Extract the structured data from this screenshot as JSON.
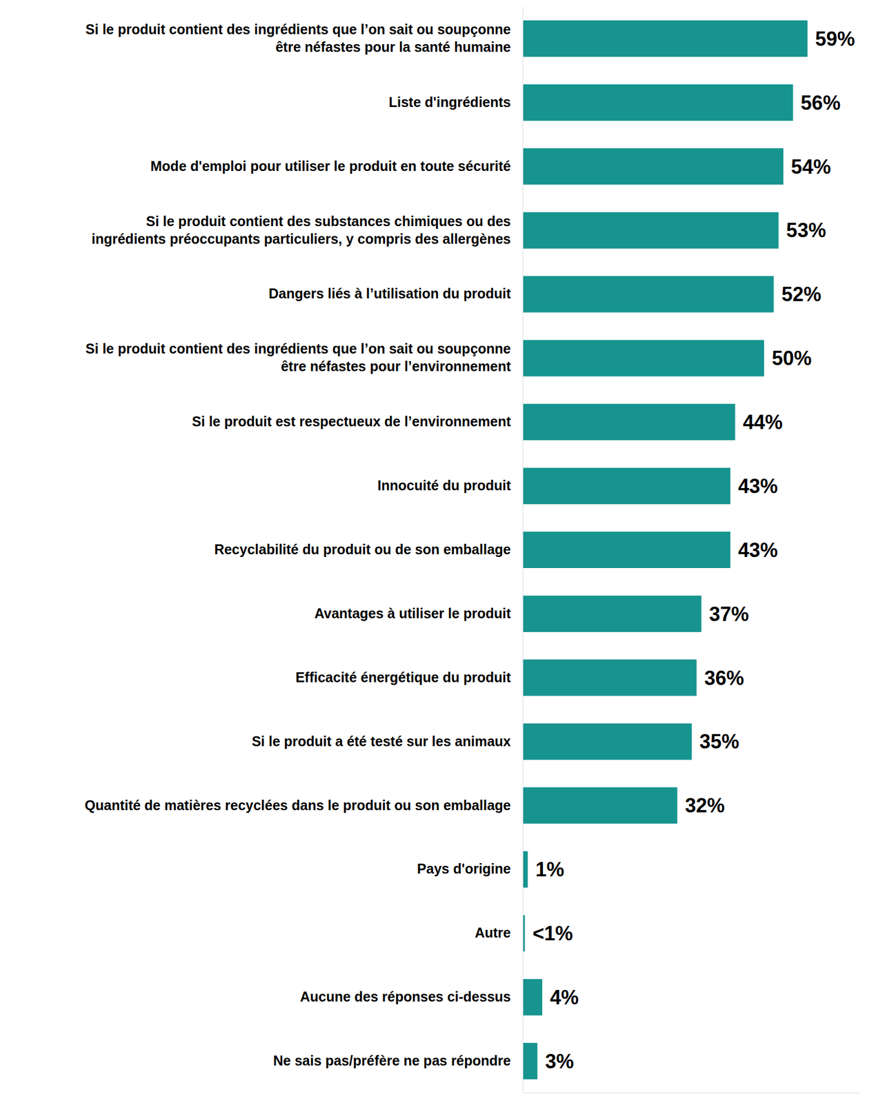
{
  "chart_data": {
    "type": "bar",
    "orientation": "horizontal",
    "categories": [
      "Si le produit contient des ingrédients que l’on sait ou soupçonne être néfastes pour la santé humaine",
      "Liste d'ingrédients",
      "Mode d'emploi pour utiliser le produit en toute sécurité",
      "Si le produit contient des substances chimiques ou des ingrédients préoccupants particuliers, y compris des allergènes",
      "Dangers liés à l’utilisation du produit",
      "Si le produit contient des ingrédients que l’on sait ou soupçonne être néfastes pour l’environnement",
      "Si le produit est respectueux de l’environnement",
      "Innocuité du produit",
      "Recyclabilité du produit ou de son emballage",
      "Avantages à utiliser le produit",
      "Efficacité énergétique du produit",
      "Si le produit a été testé sur les animaux",
      "Quantité de matières recyclées dans le produit ou son emballage",
      "Pays d'origine",
      "Autre",
      "Aucune des réponses ci-dessus",
      "Ne sais pas/préfère ne pas répondre"
    ],
    "values": [
      59,
      56,
      54,
      53,
      52,
      50,
      44,
      43,
      43,
      37,
      36,
      35,
      32,
      1,
      0.4,
      4,
      3
    ],
    "value_labels": [
      "59%",
      "56%",
      "54%",
      "53%",
      "52%",
      "50%",
      "44%",
      "43%",
      "43%",
      "37%",
      "36%",
      "35%",
      "32%",
      "1%",
      "<1%",
      "4%",
      "3%"
    ],
    "color": "#17948f",
    "xlim": [
      0,
      70
    ],
    "data_labels": true,
    "tick_labels": "y",
    "grid": false
  }
}
